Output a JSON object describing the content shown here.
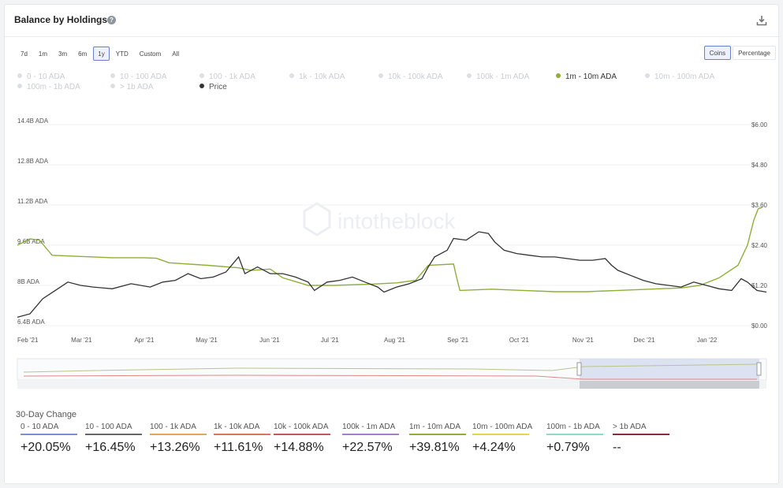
{
  "header": {
    "title": "Balance by Holdings",
    "help_icon": "?",
    "download_icon": "download-icon"
  },
  "ranges": [
    "7d",
    "1m",
    "3m",
    "6m",
    "1y",
    "YTD",
    "Custom",
    "All"
  ],
  "active_range": "1y",
  "modes": [
    "Coins",
    "Percentage"
  ],
  "active_mode": "Coins",
  "legend": {
    "items": [
      {
        "label": "0 - 10 ADA",
        "active": false
      },
      {
        "label": "10 - 100 ADA",
        "active": false
      },
      {
        "label": "100 - 1k ADA",
        "active": false
      },
      {
        "label": "1k - 10k ADA",
        "active": false
      },
      {
        "label": "10k - 100k ADA",
        "active": false
      },
      {
        "label": "100k - 1m ADA",
        "active": false
      },
      {
        "label": "1m - 10m ADA",
        "active": true
      },
      {
        "label": "10m - 100m ADA",
        "active": false
      },
      {
        "label": "100m - 1b ADA",
        "active": false
      },
      {
        "label": "> 1b ADA",
        "active": false
      }
    ],
    "price_label": "Price"
  },
  "watermark": "intotheblock",
  "chart_data": {
    "type": "line",
    "x_ticks": [
      "Feb '21",
      "Mar '21",
      "Apr '21",
      "May '21",
      "Jun '21",
      "Jul '21",
      "Aug '21",
      "Sep '21",
      "Oct '21",
      "Nov '21",
      "Dec '21",
      "Jan '22"
    ],
    "y_left_ticks": [
      "6.4B ADA",
      "8B ADA",
      "9.6B ADA",
      "11.2B ADA",
      "12.8B ADA",
      "14.4B ADA"
    ],
    "y_right_ticks": [
      "$0.00",
      "$1.20",
      "$2.40",
      "$3.60",
      "$4.80",
      "$6.00"
    ],
    "y_left_range": [
      6.4,
      14.4
    ],
    "y_right_range": [
      0,
      6
    ],
    "series": [
      {
        "name": "1m - 10m ADA",
        "axis": "left",
        "color": "#8cb034",
        "points": [
          [
            0,
            9.6
          ],
          [
            0.2,
            9.85
          ],
          [
            0.35,
            9.8
          ],
          [
            0.55,
            9.2
          ],
          [
            1.0,
            9.15
          ],
          [
            1.5,
            9.1
          ],
          [
            2.0,
            9.1
          ],
          [
            2.2,
            9.08
          ],
          [
            2.4,
            8.9
          ],
          [
            3.0,
            8.8
          ],
          [
            3.5,
            8.7
          ],
          [
            3.7,
            8.6
          ],
          [
            4.0,
            8.65
          ],
          [
            4.2,
            8.3
          ],
          [
            4.6,
            8.0
          ],
          [
            5.0,
            8.0
          ],
          [
            5.6,
            8.05
          ],
          [
            6.0,
            8.1
          ],
          [
            6.3,
            8.2
          ],
          [
            6.5,
            8.8
          ],
          [
            6.9,
            8.85
          ],
          [
            6.95,
            8.3
          ],
          [
            7.0,
            7.8
          ],
          [
            7.5,
            7.85
          ],
          [
            8.0,
            7.8
          ],
          [
            8.5,
            7.75
          ],
          [
            9.0,
            7.75
          ],
          [
            9.5,
            7.8
          ],
          [
            10.0,
            7.85
          ],
          [
            10.5,
            7.9
          ],
          [
            10.8,
            8.0
          ],
          [
            11.1,
            8.3
          ],
          [
            11.4,
            8.8
          ],
          [
            11.55,
            9.6
          ],
          [
            11.65,
            10.6
          ],
          [
            11.72,
            11.05
          ],
          [
            11.78,
            11.1
          ]
        ]
      },
      {
        "name": "Price",
        "axis": "right",
        "color": "#333333",
        "points": [
          [
            0,
            0.25
          ],
          [
            0.2,
            0.35
          ],
          [
            0.4,
            0.8
          ],
          [
            0.6,
            1.05
          ],
          [
            0.8,
            1.3
          ],
          [
            1.0,
            1.2
          ],
          [
            1.2,
            1.15
          ],
          [
            1.5,
            1.1
          ],
          [
            1.8,
            1.25
          ],
          [
            2.1,
            1.15
          ],
          [
            2.3,
            1.3
          ],
          [
            2.5,
            1.35
          ],
          [
            2.7,
            1.55
          ],
          [
            2.9,
            1.4
          ],
          [
            3.1,
            1.45
          ],
          [
            3.3,
            1.6
          ],
          [
            3.5,
            2.05
          ],
          [
            3.6,
            1.55
          ],
          [
            3.8,
            1.75
          ],
          [
            4.0,
            1.55
          ],
          [
            4.2,
            1.55
          ],
          [
            4.4,
            1.45
          ],
          [
            4.6,
            1.3
          ],
          [
            4.7,
            1.05
          ],
          [
            4.9,
            1.3
          ],
          [
            5.1,
            1.35
          ],
          [
            5.3,
            1.45
          ],
          [
            5.5,
            1.3
          ],
          [
            5.7,
            1.15
          ],
          [
            5.8,
            1.0
          ],
          [
            6.0,
            1.15
          ],
          [
            6.2,
            1.25
          ],
          [
            6.4,
            1.4
          ],
          [
            6.5,
            1.75
          ],
          [
            6.6,
            2.05
          ],
          [
            6.8,
            2.25
          ],
          [
            6.9,
            2.6
          ],
          [
            7.1,
            2.55
          ],
          [
            7.3,
            2.8
          ],
          [
            7.45,
            2.75
          ],
          [
            7.55,
            2.5
          ],
          [
            7.7,
            2.25
          ],
          [
            7.9,
            2.15
          ],
          [
            8.1,
            2.1
          ],
          [
            8.3,
            2.05
          ],
          [
            8.5,
            2.05
          ],
          [
            8.7,
            2.0
          ],
          [
            8.9,
            1.95
          ],
          [
            9.1,
            1.95
          ],
          [
            9.3,
            2.0
          ],
          [
            9.4,
            1.8
          ],
          [
            9.5,
            1.65
          ],
          [
            9.7,
            1.5
          ],
          [
            9.9,
            1.35
          ],
          [
            10.1,
            1.25
          ],
          [
            10.3,
            1.2
          ],
          [
            10.5,
            1.15
          ],
          [
            10.7,
            1.3
          ],
          [
            10.9,
            1.2
          ],
          [
            11.1,
            1.1
          ],
          [
            11.3,
            1.05
          ],
          [
            11.45,
            1.4
          ],
          [
            11.55,
            1.3
          ],
          [
            11.7,
            1.05
          ],
          [
            11.85,
            1.0
          ]
        ]
      }
    ]
  },
  "thirty_day_change": {
    "title": "30-Day Change",
    "items": [
      {
        "label": "0 - 10 ADA",
        "value": "+20.05%",
        "color": "#7b8fd4"
      },
      {
        "label": "10 - 100 ADA",
        "value": "+16.45%",
        "color": "#666666"
      },
      {
        "label": "100 - 1k ADA",
        "value": "+13.26%",
        "color": "#e0a95a"
      },
      {
        "label": "1k - 10k ADA",
        "value": "+11.61%",
        "color": "#d9765c"
      },
      {
        "label": "10k - 100k ADA",
        "value": "+14.88%",
        "color": "#c45858"
      },
      {
        "label": "100k - 1m ADA",
        "value": "+22.57%",
        "color": "#a97ec9"
      },
      {
        "label": "1m - 10m ADA",
        "value": "+39.81%",
        "color": "#8cb034"
      },
      {
        "label": "10m - 100m ADA",
        "value": "+4.24%",
        "color": "#e8d24f"
      },
      {
        "label": "100m - 1b ADA",
        "value": "+0.79%",
        "color": "#8fd9c8"
      },
      {
        "label": "> 1b ADA",
        "value": "--",
        "color": "#8b2c3a"
      }
    ]
  }
}
